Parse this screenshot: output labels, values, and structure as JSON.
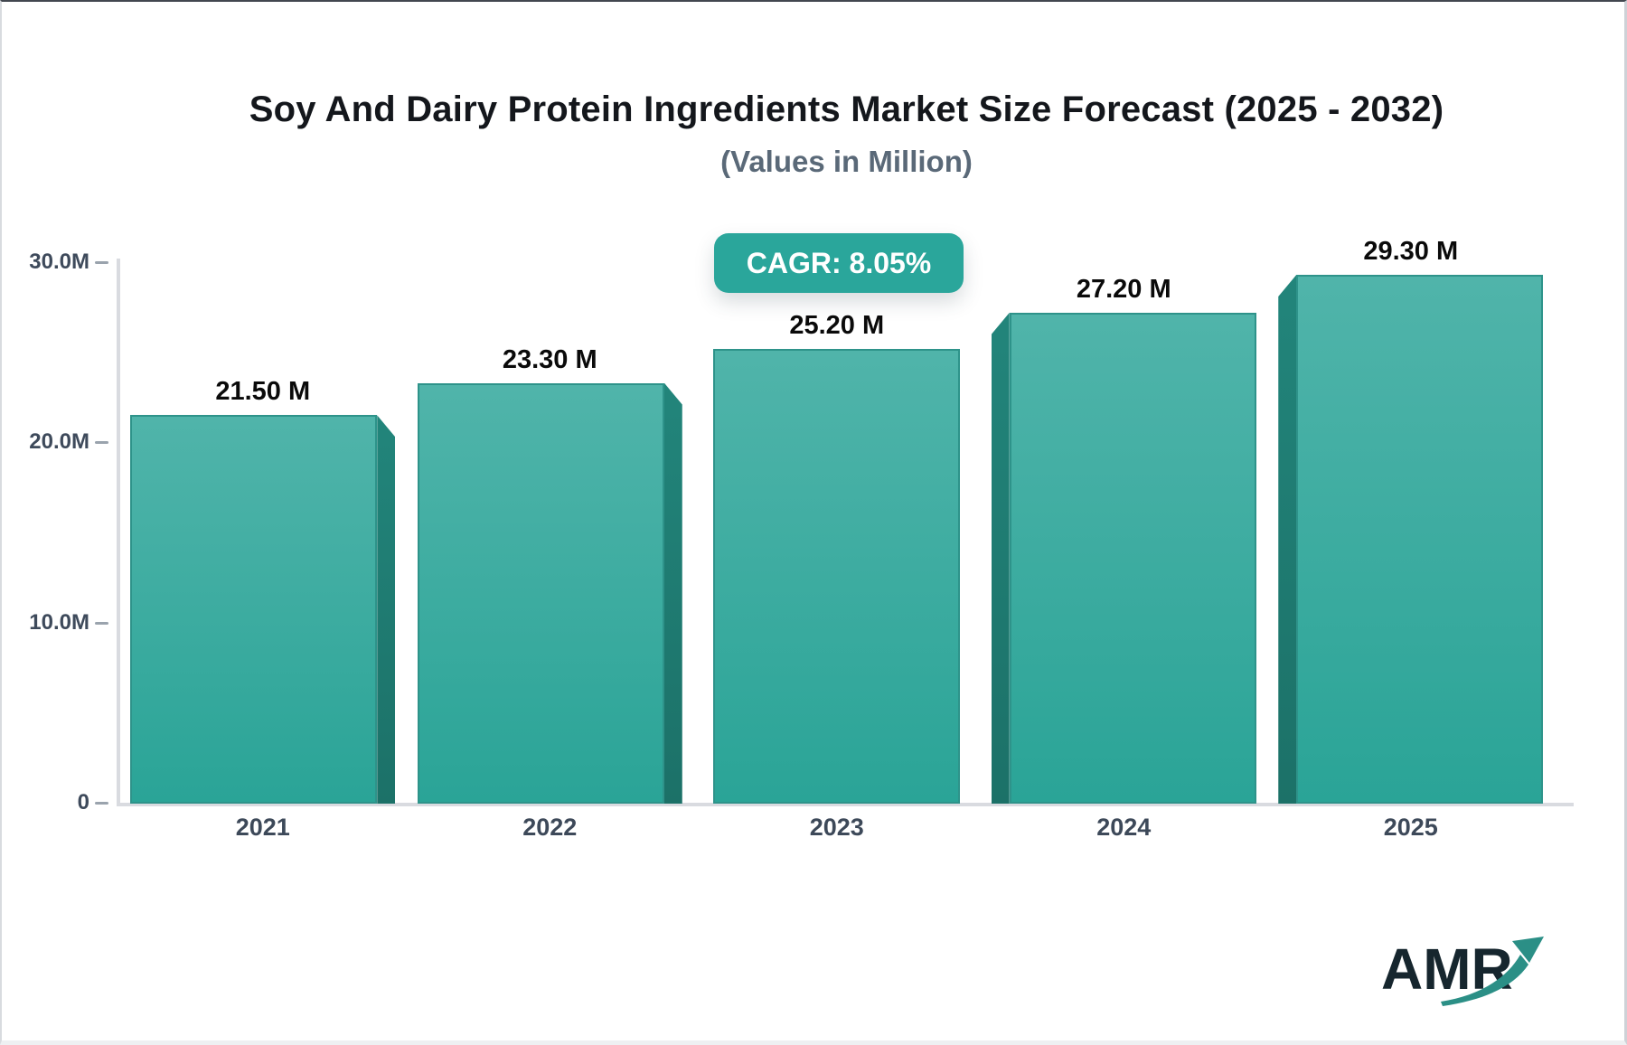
{
  "header": {
    "title": "Soy And Dairy Protein Ingredients Market Size Forecast (2025 - 2032)",
    "subtitle": "(Values in Million)"
  },
  "badge": {
    "label": "CAGR: 8.05%",
    "background": "#2AA69B",
    "text_color": "#FFFFFF"
  },
  "chart_data": {
    "type": "bar",
    "title": "Soy And Dairy Protein Ingredients Market Size Forecast (2025 - 2032)",
    "subtitle": "(Values in Million)",
    "unit": "Million",
    "categories": [
      "2021",
      "2022",
      "2023",
      "2024",
      "2025"
    ],
    "values": [
      21.5,
      23.3,
      25.2,
      27.2,
      29.3
    ],
    "value_labels": [
      "21.50 M",
      "23.30 M",
      "25.20 M",
      "27.20 M",
      "29.30 M"
    ],
    "ylim": [
      0,
      30
    ],
    "yticks": [
      {
        "value": 0,
        "label": "0"
      },
      {
        "value": 10,
        "label": "10.0M"
      },
      {
        "value": 20,
        "label": "20.0M"
      },
      {
        "value": 30,
        "label": "30.0M"
      }
    ],
    "grid": false,
    "legend": false,
    "annotation": "CAGR: 8.05%",
    "colors": {
      "bar_face_top": "#50B4AA",
      "bar_face_bottom": "#2AA497",
      "bar_side": "#1E7B71",
      "bar_border": "#2E938A",
      "axis_line": "#D9DBE0",
      "tick_label": "#3E4A5B",
      "value_label": "#0A0A0A",
      "accent": "#2AA69B"
    }
  },
  "logo": {
    "text": "AMR",
    "text_color": "#16262E",
    "arrow_color": "#2B8F86"
  }
}
